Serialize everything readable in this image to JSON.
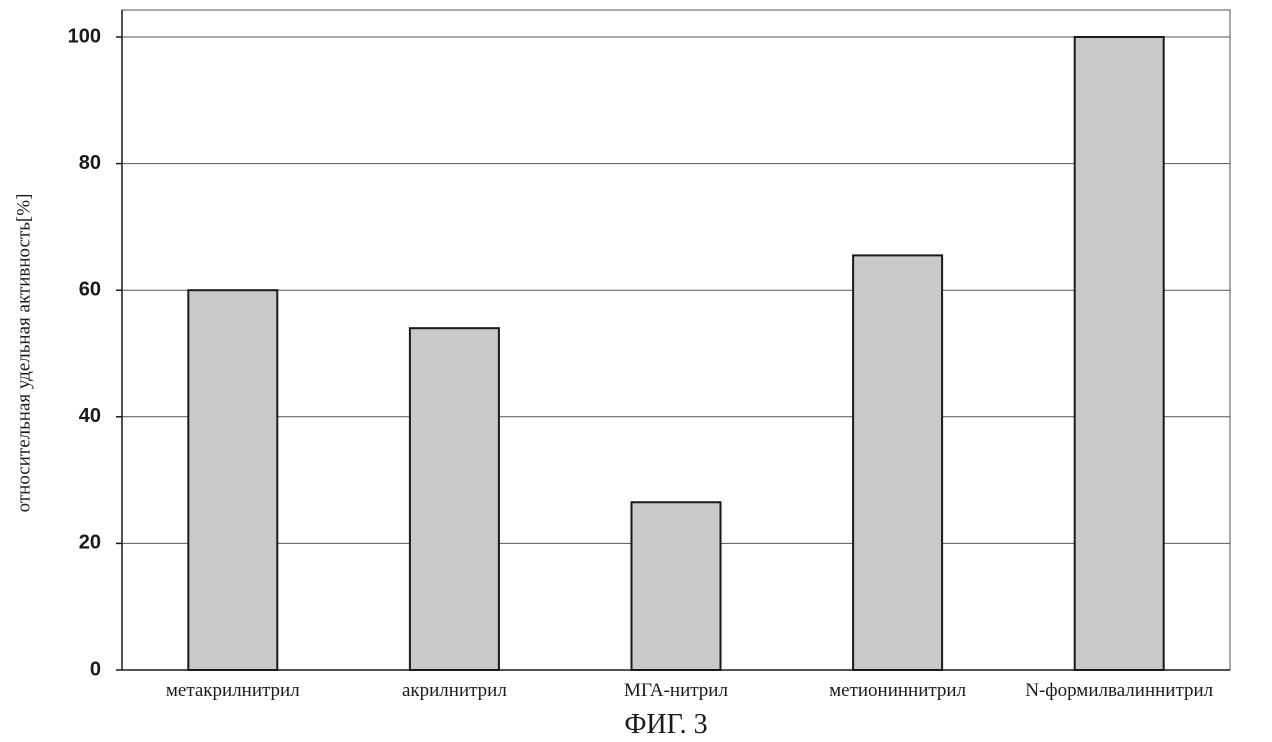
{
  "chart_data": {
    "type": "bar",
    "categories": [
      "метакрилнитрил",
      "акрилнитрил",
      "МГА-нитрил",
      "метиониннитрил",
      "N-формилвалиннитрил"
    ],
    "values": [
      60,
      54,
      26.5,
      65.5,
      100
    ],
    "xlabel": "",
    "ylabel": "относительная удельная активность[%]",
    "ylim": [
      0,
      100
    ],
    "yticks": [
      0,
      20,
      40,
      60,
      80,
      100
    ],
    "grid": true,
    "legend": "none",
    "bar_color": "#c9c9c9"
  },
  "caption": "ФИГ. 3"
}
